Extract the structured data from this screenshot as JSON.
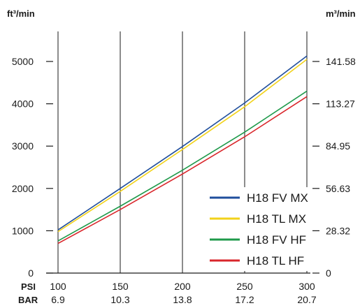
{
  "chart_data": {
    "type": "line",
    "left_unit": "ft³/min",
    "right_unit": "m³/min",
    "x_psi_label": "PSI",
    "x_bar_label": "BAR",
    "x": [
      100,
      150,
      200,
      250,
      300
    ],
    "x_bar_ticks": [
      "6.9",
      "10.3",
      "13.8",
      "17.2",
      "20.7"
    ],
    "xlim": [
      100,
      300
    ],
    "y_ticks_left": [
      "0",
      "1000",
      "2000",
      "3000",
      "4000",
      "5000"
    ],
    "y_ticks_right": [
      "0",
      "28.32",
      "56.63",
      "84.95",
      "113.27",
      "141.58"
    ],
    "ylim": [
      0,
      5000
    ],
    "grid": "vertical",
    "legend_position": "bottom-right",
    "series": [
      {
        "name": "H18 FV MX",
        "color": "#1f4e9c",
        "values": [
          1020,
          2000,
          2990,
          4020,
          5130
        ]
      },
      {
        "name": "H18 TL MX",
        "color": "#f2d21a",
        "values": [
          980,
          1930,
          2920,
          3930,
          5050
        ]
      },
      {
        "name": "H18 FV HF",
        "color": "#1f9a4b",
        "values": [
          760,
          1580,
          2430,
          3330,
          4300
        ]
      },
      {
        "name": "H18 TL HF",
        "color": "#d9262b",
        "values": [
          700,
          1500,
          2340,
          3220,
          4170
        ]
      }
    ]
  }
}
